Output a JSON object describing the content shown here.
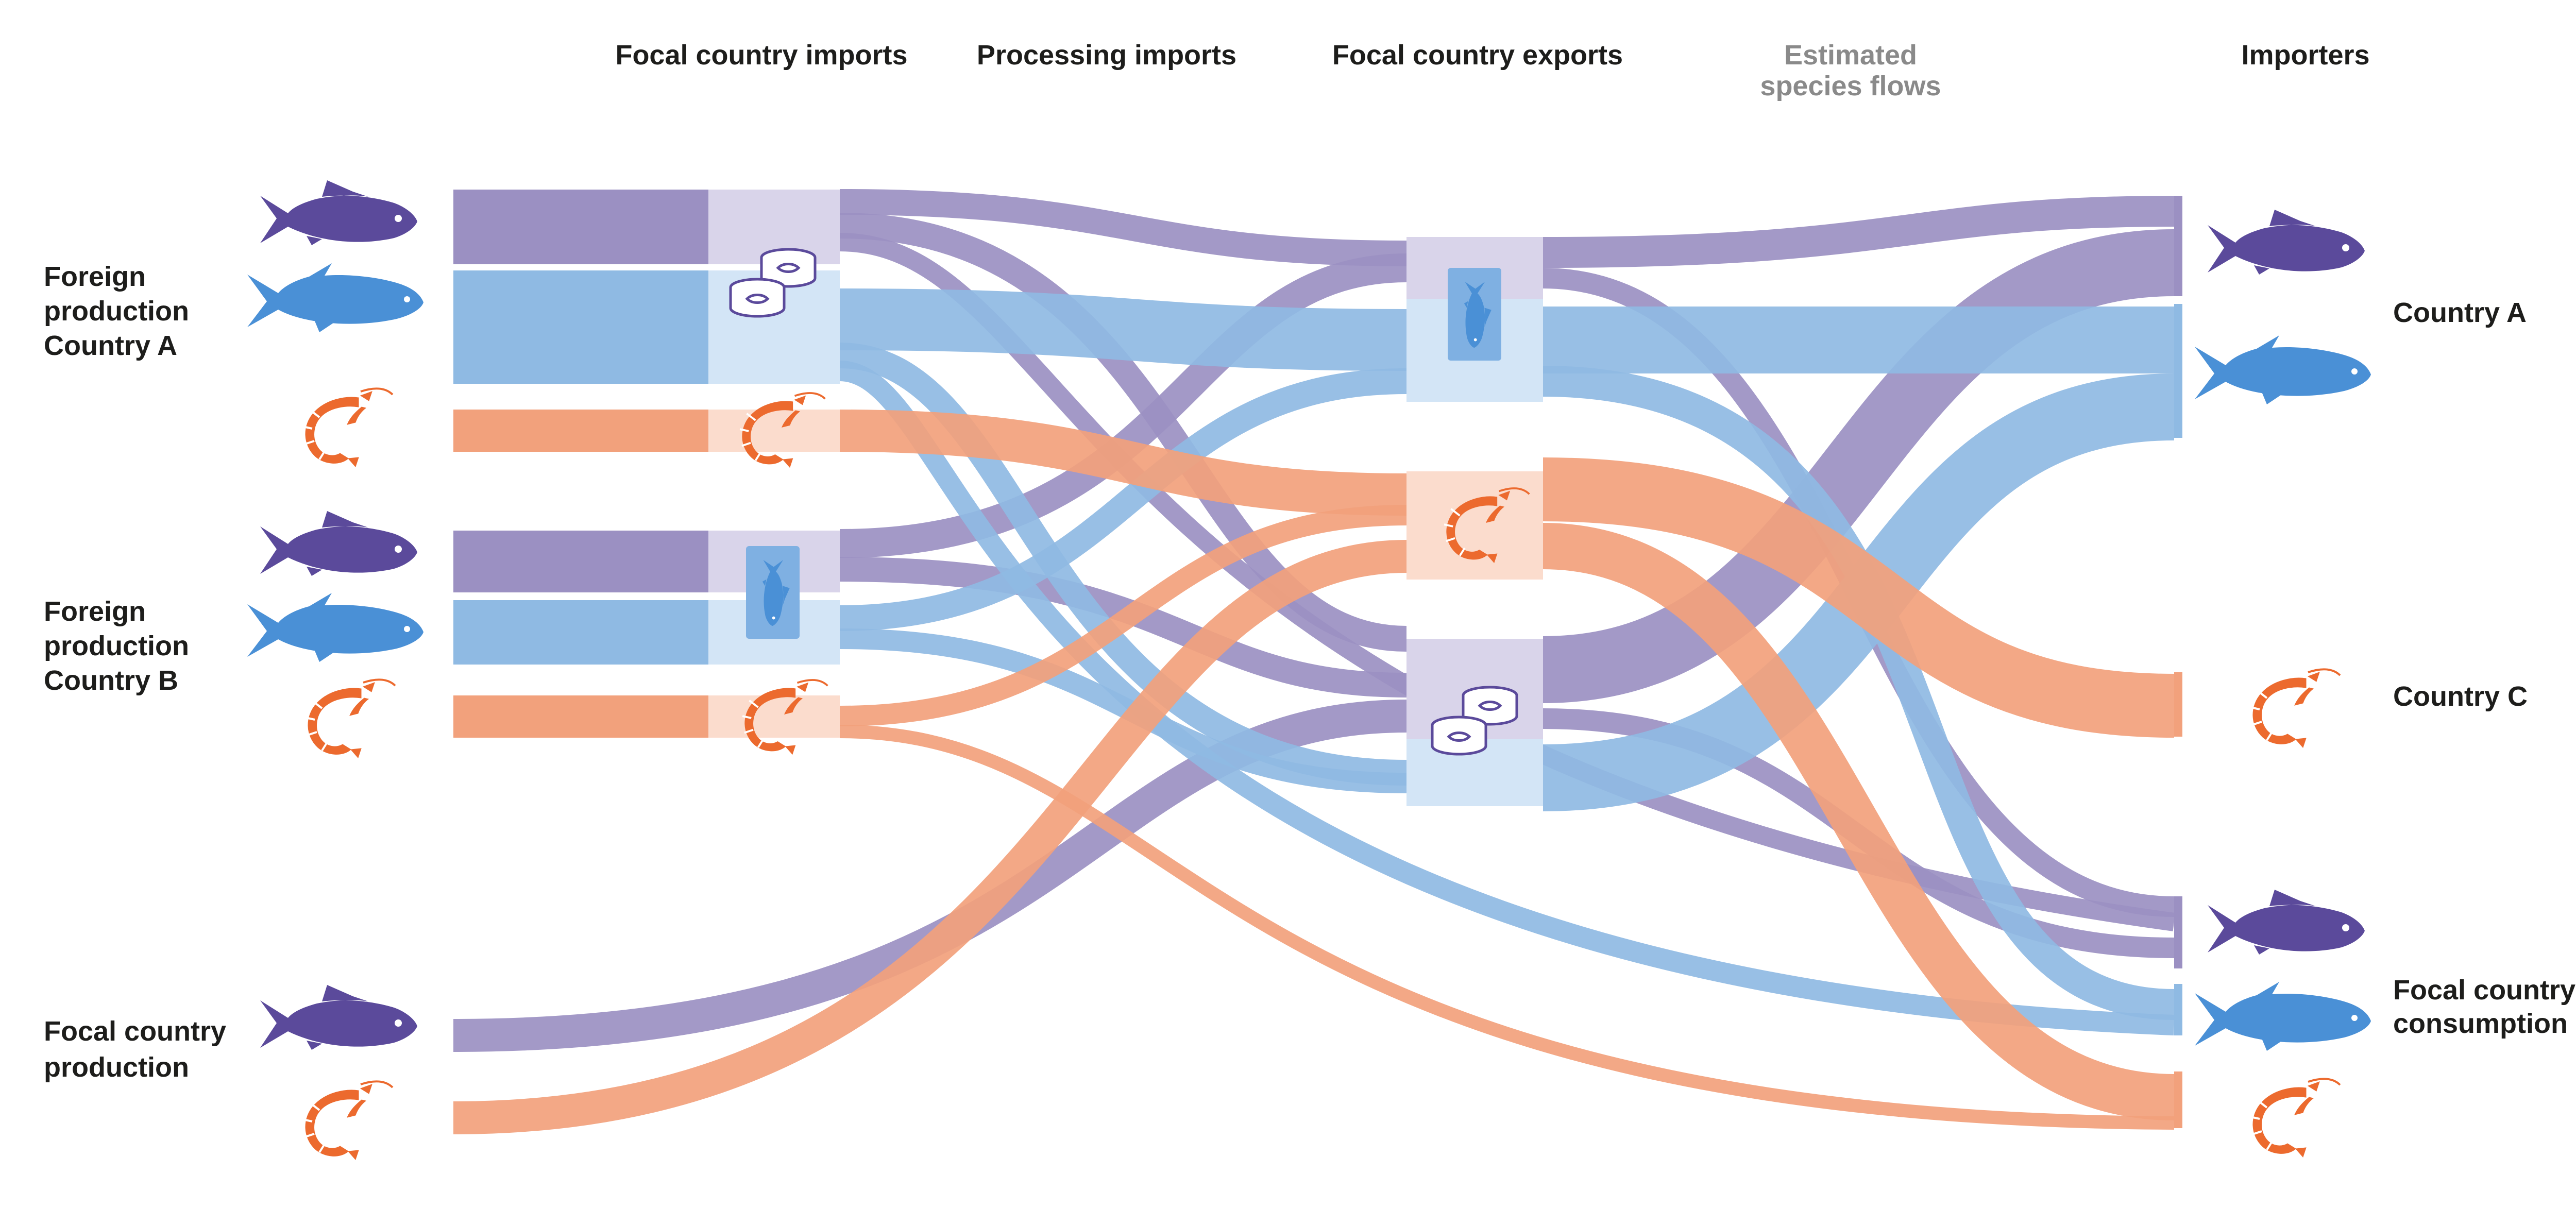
{
  "colors": {
    "tuna": "#5b4a9b",
    "tuna_flow": "#9b90c2",
    "salmon": "#4a90d6",
    "salmon_flow": "#8fbae3",
    "shrimp": "#ec6a2e",
    "shrimp_flow": "#f2a17c",
    "node_tint_tuna": "#d9d4ea",
    "node_tint_salmon": "#d3e5f6",
    "node_tint_shrimp": "#fbdccd",
    "header_grey": "#8a8a8a",
    "text": "#1d1d1b"
  },
  "headers": {
    "focal_imports": "Focal country imports",
    "processing_imports": "Processing imports",
    "focal_exports": "Focal country exports",
    "estimated_line1": "Estimated",
    "estimated_line2": "species flows",
    "importers": "Importers"
  },
  "sources": {
    "foreign_a": [
      "Foreign",
      "production",
      "Country A"
    ],
    "foreign_b": [
      "Foreign",
      "production",
      "Country B"
    ],
    "focal": [
      "Focal country",
      "production"
    ]
  },
  "destinations": {
    "country_a": "Country A",
    "country_c": "Country C",
    "focal_consumption": [
      "Focal country",
      "consumption"
    ]
  },
  "icons": {
    "species": [
      "tuna-icon",
      "salmon-icon",
      "shrimp-icon"
    ],
    "products": [
      "canned-fish-icon",
      "packaged-fish-icon",
      "shrimp-icon"
    ]
  }
}
